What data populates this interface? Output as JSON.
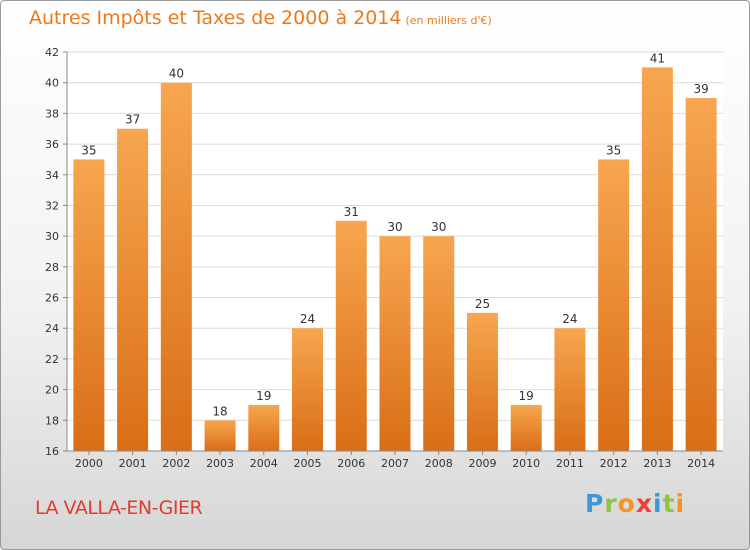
{
  "header": {
    "title": "Autres Impôts et Taxes de 2000 à 2014",
    "unit": "(en milliers d'€)"
  },
  "commune": "LA VALLA-EN-GIER",
  "logo": {
    "letters": [
      "P",
      "r",
      "o",
      "x",
      "i",
      "t",
      "i"
    ],
    "colors": [
      "#3a9ad9",
      "#8dc63f",
      "#f7941d",
      "#e8413c",
      "#3a9ad9",
      "#8dc63f",
      "#f7941d"
    ]
  },
  "colors": {
    "title": "#ec7a1c",
    "commune": "#e03d2e",
    "bar_light": "#f7a64f",
    "bar_dark": "#d96e16"
  },
  "chart_data": {
    "type": "bar",
    "title": "Autres Impôts et Taxes de 2000 à 2014",
    "xlabel": "",
    "ylabel": "",
    "categories": [
      "2000",
      "2001",
      "2002",
      "2003",
      "2004",
      "2005",
      "2006",
      "2007",
      "2008",
      "2009",
      "2010",
      "2011",
      "2012",
      "2013",
      "2014"
    ],
    "values": [
      35,
      37,
      40,
      18,
      19,
      24,
      31,
      30,
      30,
      25,
      19,
      24,
      35,
      41,
      39
    ],
    "ylim": [
      16,
      42
    ],
    "yticks": [
      16,
      18,
      20,
      22,
      24,
      26,
      28,
      30,
      32,
      34,
      36,
      38,
      40,
      42
    ],
    "grid": true,
    "legend": "none"
  }
}
